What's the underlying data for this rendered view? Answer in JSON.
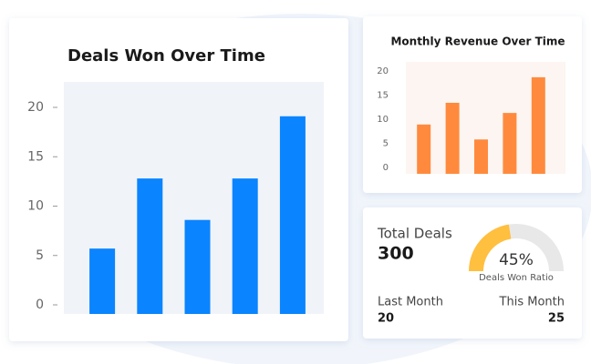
{
  "chart_data": [
    {
      "type": "bar",
      "title": "Deals Won Over Time",
      "categories": [
        null,
        null,
        null,
        null,
        null
      ],
      "values": [
        5.7,
        12.8,
        8.6,
        12.8,
        19.1
      ],
      "color": "#0a84ff",
      "ylim": [
        0,
        23
      ],
      "yticks": [
        0,
        5,
        10,
        15,
        20
      ]
    },
    {
      "type": "bar",
      "title": "Monthly Revenue Over Time",
      "categories": [
        null,
        null,
        null,
        null,
        null
      ],
      "values": [
        8.9,
        13.4,
        5.8,
        11.3,
        18.7
      ],
      "color": "#ff8a3d",
      "ylim": [
        0,
        22
      ],
      "yticks": [
        0,
        5,
        10,
        15,
        20
      ]
    }
  ],
  "summary": {
    "total_label": "Total Deals",
    "total_value": "300",
    "gauge": {
      "value": 45,
      "value_label": "45%",
      "caption": "Deals Won Ratio",
      "color": "#ffbf3f"
    },
    "last_month_label": "Last Month",
    "last_month_value": "20",
    "this_month_label": "This Month",
    "this_month_value": "25"
  }
}
